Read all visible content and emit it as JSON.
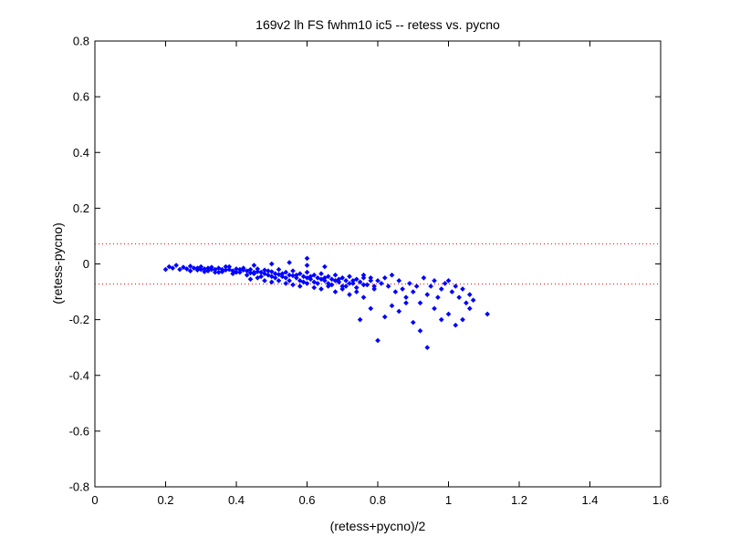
{
  "chart_data": {
    "type": "scatter",
    "title": "169v2 lh FS fwhm10 ic5 -- retess vs. pycno",
    "xlabel": "(retess+pycno)/2",
    "ylabel": "(retess-pycno)",
    "xlim": [
      0,
      1.6
    ],
    "ylim": [
      -0.8,
      0.8
    ],
    "xticks": [
      0,
      0.2,
      0.4,
      0.6,
      0.8,
      1,
      1.2,
      1.4,
      1.6
    ],
    "yticks": [
      -0.8,
      -0.6,
      -0.4,
      -0.2,
      0,
      0.2,
      0.4,
      0.6,
      0.8
    ],
    "xtick_labels": [
      "0",
      "0.2",
      "0.4",
      "0.6",
      "0.8",
      "1",
      "1.2",
      "1.4",
      "1.6"
    ],
    "ytick_labels": [
      "-0.8",
      "-0.6",
      "-0.4",
      "-0.2",
      "0",
      "0.2",
      "0.4",
      "0.6",
      "0.8"
    ],
    "grid": false,
    "marker_color": "#0000ff",
    "reference_line_color": "#ff0000",
    "reference_lines": [
      0.072,
      -0.072
    ],
    "series": [
      {
        "points": [
          [
            0.2,
            -0.02
          ],
          [
            0.21,
            -0.01
          ],
          [
            0.22,
            -0.015
          ],
          [
            0.23,
            -0.005
          ],
          [
            0.24,
            -0.02
          ],
          [
            0.25,
            -0.012
          ],
          [
            0.26,
            -0.018
          ],
          [
            0.27,
            -0.008
          ],
          [
            0.28,
            -0.015
          ],
          [
            0.29,
            -0.022
          ],
          [
            0.3,
            -0.01
          ],
          [
            0.31,
            -0.018
          ],
          [
            0.32,
            -0.025
          ],
          [
            0.33,
            -0.012
          ],
          [
            0.34,
            -0.02
          ],
          [
            0.35,
            -0.015
          ],
          [
            0.36,
            -0.028
          ],
          [
            0.37,
            -0.01
          ],
          [
            0.38,
            -0.02
          ],
          [
            0.39,
            -0.025
          ],
          [
            0.4,
            -0.018
          ],
          [
            0.41,
            -0.03
          ],
          [
            0.42,
            -0.015
          ],
          [
            0.43,
            -0.025
          ],
          [
            0.44,
            -0.02
          ],
          [
            0.45,
            -0.035
          ],
          [
            0.46,
            -0.018
          ],
          [
            0.47,
            -0.03
          ],
          [
            0.48,
            -0.022
          ],
          [
            0.49,
            -0.04
          ],
          [
            0.5,
            -0.028
          ],
          [
            0.51,
            -0.035
          ],
          [
            0.52,
            -0.02
          ],
          [
            0.53,
            -0.045
          ],
          [
            0.54,
            -0.03
          ],
          [
            0.55,
            -0.04
          ],
          [
            0.56,
            -0.025
          ],
          [
            0.57,
            -0.05
          ],
          [
            0.58,
            -0.035
          ],
          [
            0.59,
            -0.045
          ],
          [
            0.6,
            -0.03
          ],
          [
            0.61,
            -0.055
          ],
          [
            0.62,
            -0.04
          ],
          [
            0.63,
            -0.05
          ],
          [
            0.64,
            -0.035
          ],
          [
            0.65,
            -0.06
          ],
          [
            0.66,
            -0.045
          ],
          [
            0.67,
            -0.055
          ],
          [
            0.68,
            -0.04
          ],
          [
            0.69,
            -0.065
          ],
          [
            0.7,
            -0.05
          ],
          [
            0.71,
            -0.06
          ],
          [
            0.72,
            -0.045
          ],
          [
            0.73,
            -0.07
          ],
          [
            0.74,
            -0.055
          ],
          [
            0.75,
            -0.065
          ],
          [
            0.76,
            -0.05
          ],
          [
            0.77,
            -0.075
          ],
          [
            0.78,
            -0.06
          ],
          [
            0.79,
            -0.08
          ],
          [
            0.3,
            -0.02
          ],
          [
            0.32,
            -0.015
          ],
          [
            0.34,
            -0.03
          ],
          [
            0.36,
            -0.02
          ],
          [
            0.38,
            -0.01
          ],
          [
            0.4,
            -0.03
          ],
          [
            0.42,
            -0.022
          ],
          [
            0.44,
            -0.032
          ],
          [
            0.46,
            -0.028
          ],
          [
            0.48,
            -0.035
          ],
          [
            0.5,
            -0.045
          ],
          [
            0.52,
            -0.038
          ],
          [
            0.54,
            -0.05
          ],
          [
            0.56,
            -0.042
          ],
          [
            0.58,
            -0.06
          ],
          [
            0.6,
            -0.05
          ],
          [
            0.62,
            -0.065
          ],
          [
            0.64,
            -0.055
          ],
          [
            0.66,
            -0.07
          ],
          [
            0.68,
            -0.06
          ],
          [
            0.7,
            -0.08
          ],
          [
            0.72,
            -0.07
          ],
          [
            0.74,
            -0.085
          ],
          [
            0.76,
            -0.075
          ],
          [
            0.27,
            -0.025
          ],
          [
            0.29,
            -0.015
          ],
          [
            0.31,
            -0.028
          ],
          [
            0.33,
            -0.02
          ],
          [
            0.35,
            -0.03
          ],
          [
            0.37,
            -0.022
          ],
          [
            0.39,
            -0.035
          ],
          [
            0.41,
            -0.02
          ],
          [
            0.43,
            -0.04
          ],
          [
            0.45,
            -0.03
          ],
          [
            0.47,
            -0.045
          ],
          [
            0.49,
            -0.025
          ],
          [
            0.51,
            -0.05
          ],
          [
            0.53,
            -0.035
          ],
          [
            0.55,
            -0.06
          ],
          [
            0.57,
            -0.04
          ],
          [
            0.59,
            -0.065
          ],
          [
            0.61,
            -0.045
          ],
          [
            0.63,
            -0.07
          ],
          [
            0.65,
            -0.05
          ],
          [
            0.67,
            -0.075
          ],
          [
            0.69,
            -0.055
          ],
          [
            0.71,
            -0.08
          ],
          [
            0.73,
            -0.06
          ],
          [
            0.44,
            -0.055
          ],
          [
            0.46,
            -0.05
          ],
          [
            0.48,
            -0.06
          ],
          [
            0.5,
            -0.065
          ],
          [
            0.52,
            -0.06
          ],
          [
            0.54,
            -0.07
          ],
          [
            0.56,
            -0.075
          ],
          [
            0.58,
            -0.08
          ],
          [
            0.6,
            -0.07
          ],
          [
            0.62,
            -0.085
          ],
          [
            0.64,
            -0.09
          ],
          [
            0.66,
            -0.08
          ],
          [
            0.68,
            -0.1
          ],
          [
            0.7,
            -0.09
          ],
          [
            0.72,
            -0.11
          ],
          [
            0.74,
            -0.1
          ],
          [
            0.45,
            -0.005
          ],
          [
            0.5,
            0.0
          ],
          [
            0.55,
            0.005
          ],
          [
            0.6,
            -0.005
          ],
          [
            0.6,
            0.02
          ],
          [
            0.65,
            -0.01
          ],
          [
            0.76,
            -0.04
          ],
          [
            0.78,
            -0.05
          ],
          [
            0.79,
            -0.09
          ],
          [
            0.8,
            -0.06
          ],
          [
            0.81,
            -0.07
          ],
          [
            0.82,
            -0.05
          ],
          [
            0.83,
            -0.08
          ],
          [
            0.84,
            -0.04
          ],
          [
            0.85,
            -0.1
          ],
          [
            0.86,
            -0.06
          ],
          [
            0.87,
            -0.09
          ],
          [
            0.88,
            -0.12
          ],
          [
            0.89,
            -0.07
          ],
          [
            0.9,
            -0.1
          ],
          [
            0.91,
            -0.08
          ],
          [
            0.92,
            -0.14
          ],
          [
            0.93,
            -0.05
          ],
          [
            0.94,
            -0.11
          ],
          [
            0.95,
            -0.08
          ],
          [
            0.96,
            -0.06
          ],
          [
            0.97,
            -0.12
          ],
          [
            0.98,
            -0.09
          ],
          [
            0.99,
            -0.07
          ],
          [
            1.0,
            -0.06
          ],
          [
            1.01,
            -0.1
          ],
          [
            1.02,
            -0.08
          ],
          [
            1.03,
            -0.12
          ],
          [
            1.04,
            -0.09
          ],
          [
            1.05,
            -0.14
          ],
          [
            1.06,
            -0.11
          ],
          [
            1.07,
            -0.13
          ],
          [
            1.11,
            -0.18
          ],
          [
            0.75,
            -0.2
          ],
          [
            0.76,
            -0.12
          ],
          [
            0.78,
            -0.16
          ],
          [
            0.8,
            -0.275
          ],
          [
            0.82,
            -0.19
          ],
          [
            0.84,
            -0.15
          ],
          [
            0.86,
            -0.17
          ],
          [
            0.88,
            -0.14
          ],
          [
            0.9,
            -0.21
          ],
          [
            0.92,
            -0.24
          ],
          [
            0.94,
            -0.3
          ],
          [
            0.96,
            -0.16
          ],
          [
            0.98,
            -0.2
          ],
          [
            1.0,
            -0.18
          ],
          [
            1.02,
            -0.22
          ],
          [
            1.04,
            -0.2
          ],
          [
            1.06,
            -0.16
          ]
        ]
      }
    ]
  }
}
